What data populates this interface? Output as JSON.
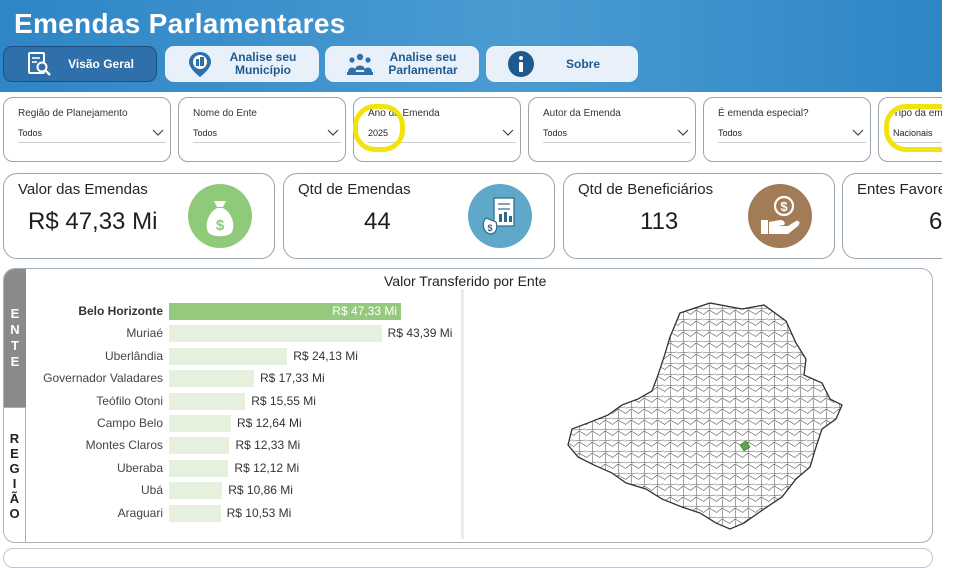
{
  "header": {
    "title": "Emendas Parlamentares"
  },
  "nav": [
    {
      "label": "Visão Geral",
      "icon": "report-search-icon",
      "active": true
    },
    {
      "label": "Analise seu Município",
      "icon": "city-pin-icon",
      "active": false
    },
    {
      "label": "Analise seu Parlamentar",
      "icon": "parliament-people-icon",
      "active": false
    },
    {
      "label": "Sobre",
      "icon": "info-icon",
      "active": false
    }
  ],
  "filters": [
    {
      "label": "Região de Planejamento",
      "value": "Todos"
    },
    {
      "label": "Nome do Ente",
      "value": "Todos"
    },
    {
      "label": "Ano da Emenda",
      "value": "2025"
    },
    {
      "label": "Autor da Emenda",
      "value": "Todos"
    },
    {
      "label": "É emenda especial?",
      "value": "Todos"
    },
    {
      "label": "Tipo da em",
      "value": "Nacionais"
    }
  ],
  "kpis": [
    {
      "label": "Valor das Emendas",
      "value": "R$ 47,33 Mi",
      "icon": "money-bag-icon",
      "color": "#8fc97a"
    },
    {
      "label": "Qtd de Emendas",
      "value": "44",
      "icon": "document-money-icon",
      "color": "#5fa8c9"
    },
    {
      "label": "Qtd de Beneficiários",
      "value": "113",
      "icon": "hand-coin-icon",
      "color": "#a27c57"
    },
    {
      "label": "Entes Favore",
      "value": "6"
    }
  ],
  "chart_tabs": {
    "ente": "ENTE",
    "regiao": "REGIÃO"
  },
  "chart_data": {
    "type": "bar",
    "title": "Valor Transferido por Ente",
    "orientation": "horizontal",
    "categories": [
      "Belo Horizonte",
      "Muriaé",
      "Uberlândia",
      "Governador Valadares",
      "Teófilo Otoni",
      "Campo Belo",
      "Montes Claros",
      "Uberaba",
      "Ubá",
      "Araguari"
    ],
    "values": [
      47.33,
      43.39,
      24.13,
      17.33,
      15.55,
      12.64,
      12.33,
      12.12,
      10.86,
      10.53
    ],
    "labels": [
      "R$ 47,33 Mi",
      "R$ 43,39 Mi",
      "R$ 24,13 Mi",
      "R$ 17,33 Mi",
      "R$ 15,55 Mi",
      "R$ 12,64 Mi",
      "R$ 12,33 Mi",
      "R$ 12,12 Mi",
      "R$ 10,86 Mi",
      "R$ 10,53 Mi"
    ],
    "highlighted": "Belo Horizonte",
    "colors": {
      "highlight": "#95c97e",
      "normal": "#e6f1dd"
    }
  },
  "map": {
    "icon": "minas-gerais-map-icon",
    "highlight_color": "#5da64a"
  },
  "annotations": {
    "highlight_color": "#f3e30c"
  }
}
